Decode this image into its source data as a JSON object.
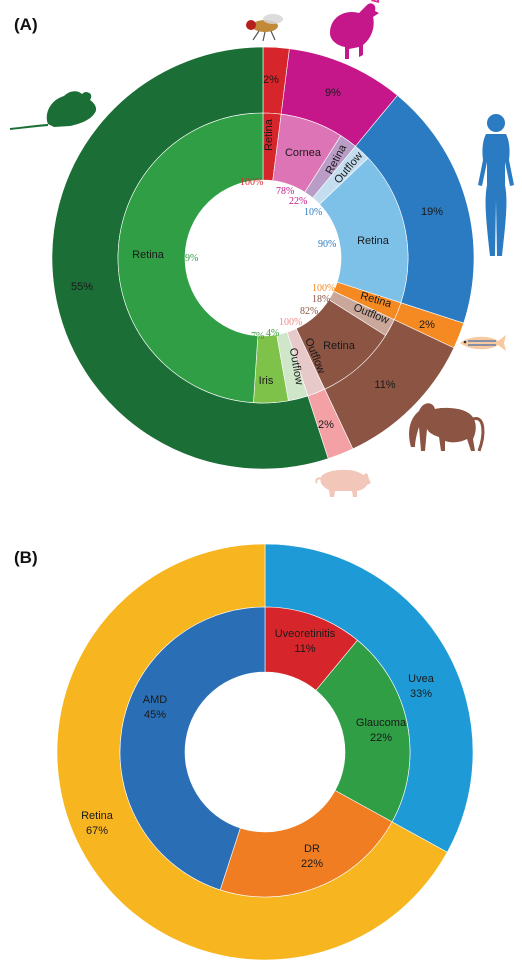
{
  "chart_data": [
    {
      "panel": "(A)",
      "type": "pie",
      "title": "",
      "outer_ring": {
        "slices": [
          {
            "label": "2%",
            "value": 2,
            "color": "#d7262b",
            "icon": "fly-icon"
          },
          {
            "label": "9%",
            "value": 9,
            "color": "#c5168a",
            "icon": "chicken-icon"
          },
          {
            "label": "19%",
            "value": 19,
            "color": "#2a7bc2",
            "icon": "human-icon"
          },
          {
            "label": "2%",
            "value": 2,
            "color": "#f58a22",
            "icon": "zebrafish-icon"
          },
          {
            "label": "11%",
            "value": 11,
            "color": "#8b5443",
            "icon": "monkey-icon"
          },
          {
            "label": "2%",
            "value": 2,
            "color": "#f4a1a6",
            "icon": "pig-icon"
          },
          {
            "label": "55%",
            "value": 55,
            "color": "#1b6e35",
            "icon": "mouse-icon"
          }
        ]
      },
      "inner_ring": {
        "slices": [
          {
            "label": "Retina",
            "value": 2,
            "color": "#d7262b",
            "within_species_pct": "100%",
            "pct_color": "#d7262b"
          },
          {
            "label": "Cornea",
            "value": 7.02,
            "color": "#dd74b6",
            "within_species_pct": "78%",
            "pct_color": "#c5168a"
          },
          {
            "label": "Retina Outflow",
            "value": 1.98,
            "color": "#b99dc7",
            "within_species_pct": "22%",
            "pct_color": "#c5168a"
          },
          {
            "label": "Outflow",
            "value": 1.9,
            "color": "#c4def0",
            "within_species_pct": "10%",
            "pct_color": "#2a7bc2"
          },
          {
            "label": "Retina",
            "value": 17.1,
            "color": "#7ec1e8",
            "within_species_pct": "90%",
            "pct_color": "#2a7bc2"
          },
          {
            "label": "Retina",
            "value": 2,
            "color": "#f58a22",
            "within_species_pct": "100%",
            "pct_color": "#f58a22"
          },
          {
            "label": "Outflow",
            "value": 1.98,
            "color": "#c9a79a",
            "within_species_pct": "18%",
            "pct_color": "#8b5443"
          },
          {
            "label": "Retina",
            "value": 9.02,
            "color": "#8b5443",
            "within_species_pct": "82%",
            "pct_color": "#8b5443"
          },
          {
            "label": "Outflow",
            "value": 2,
            "color": "#e8c9c9",
            "within_species_pct": "100%",
            "pct_color": "#f08a8a"
          },
          {
            "label": "Outflow",
            "value": 2.2,
            "color": "#cfe6c8",
            "within_species_pct": "4%",
            "pct_color": "#3a9a3a"
          },
          {
            "label": "Iris",
            "value": 3.85,
            "color": "#7fc24a",
            "within_species_pct": "7%",
            "pct_color": "#3a9a3a"
          },
          {
            "label": "Retina",
            "value": 48.95,
            "color": "#2f9e44",
            "within_species_pct": "89%",
            "pct_color": "#2f9e44"
          }
        ]
      }
    },
    {
      "panel": "(B)",
      "type": "pie",
      "title": "",
      "outer_ring": {
        "slices": [
          {
            "label": "Uvea",
            "pct": "33%",
            "value": 33,
            "color": "#1e9bd7"
          },
          {
            "label": "Retina",
            "pct": "67%",
            "value": 67,
            "color": "#f7b520"
          }
        ]
      },
      "inner_ring": {
        "slices": [
          {
            "label": "Uveoretinitis",
            "pct": "11%",
            "value": 11,
            "color": "#d7262b"
          },
          {
            "label": "Glaucoma",
            "pct": "22%",
            "value": 22,
            "color": "#2f9e44"
          },
          {
            "label": "DR",
            "pct": "22%",
            "value": 22,
            "color": "#f07d22"
          },
          {
            "label": "AMD",
            "pct": "45%",
            "value": 45,
            "color": "#2a6fb5"
          }
        ]
      }
    }
  ]
}
